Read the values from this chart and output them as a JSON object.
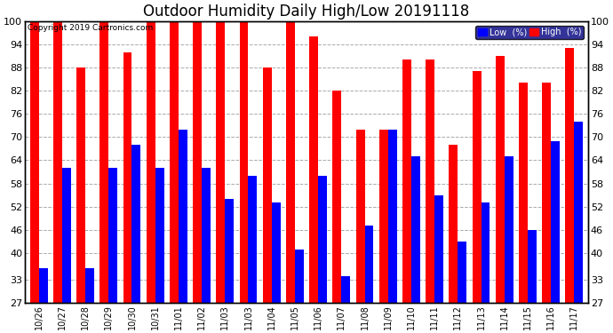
{
  "title": "Outdoor Humidity Daily High/Low 20191118",
  "copyright": "Copyright 2019 Cartronics.com",
  "labels": [
    "10/26",
    "10/27",
    "10/28",
    "10/29",
    "10/30",
    "10/31",
    "11/01",
    "11/02",
    "11/03",
    "11/03",
    "11/04",
    "11/05",
    "11/06",
    "11/07",
    "11/08",
    "11/09",
    "11/10",
    "11/11",
    "11/12",
    "11/13",
    "11/14",
    "11/15",
    "11/16",
    "11/17"
  ],
  "high": [
    100,
    100,
    88,
    100,
    92,
    100,
    100,
    100,
    100,
    100,
    88,
    100,
    96,
    82,
    72,
    72,
    90,
    90,
    68,
    87,
    91,
    84,
    84,
    93
  ],
  "low": [
    36,
    62,
    36,
    62,
    68,
    62,
    72,
    62,
    54,
    60,
    53,
    41,
    60,
    34,
    47,
    72,
    65,
    55,
    43,
    53,
    65,
    46,
    69,
    74
  ],
  "ylim_min": 27,
  "ylim_max": 100,
  "yticks": [
    27,
    33,
    40,
    46,
    52,
    58,
    64,
    70,
    76,
    82,
    88,
    94,
    100
  ],
  "bar_width": 0.38,
  "high_color": "#ff0000",
  "low_color": "#0000ff",
  "bg_color": "#ffffff",
  "grid_color": "#aaaaaa",
  "title_fontsize": 12,
  "legend_labels": [
    "Low  (%)",
    "High  (%)"
  ]
}
